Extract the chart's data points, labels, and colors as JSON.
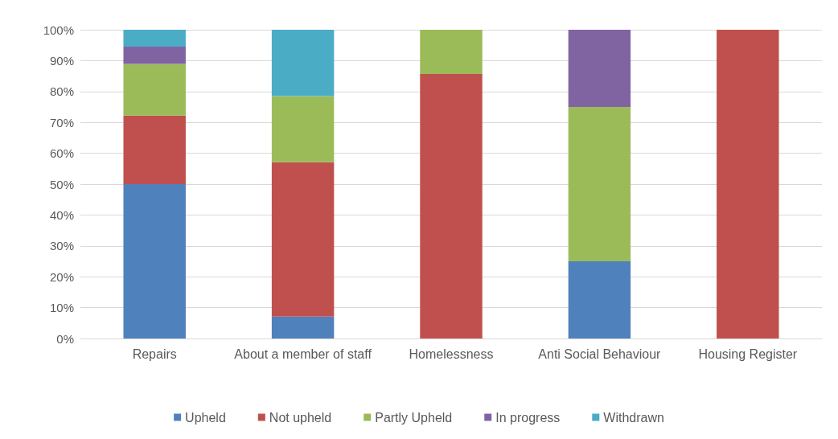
{
  "chart_data": {
    "type": "bar",
    "stacked": true,
    "categories": [
      "Repairs",
      "About a member of staff",
      "Homelessness",
      "Anti Social Behaviour",
      "Housing Register"
    ],
    "series": [
      {
        "name": "Upheld",
        "color": "#4f81bd",
        "values": [
          50,
          7.1,
          0,
          25,
          0
        ]
      },
      {
        "name": "Not upheld",
        "color": "#c0504d",
        "values": [
          22.2,
          50,
          85.7,
          0,
          100
        ]
      },
      {
        "name": "Partly Upheld",
        "color": "#9bbb59",
        "values": [
          16.7,
          21.4,
          14.3,
          50,
          0
        ]
      },
      {
        "name": "In progress",
        "color": "#8064a2",
        "values": [
          5.6,
          0,
          0,
          25,
          0
        ]
      },
      {
        "name": "Withdrawn",
        "color": "#4bacc6",
        "values": [
          5.5,
          21.5,
          0,
          0,
          0
        ]
      }
    ],
    "ylim": [
      0,
      100
    ],
    "yticks": [
      {
        "value": 0,
        "label": "0%"
      },
      {
        "value": 10,
        "label": "10%"
      },
      {
        "value": 20,
        "label": "20%"
      },
      {
        "value": 30,
        "label": "30%"
      },
      {
        "value": 40,
        "label": "40%"
      },
      {
        "value": 50,
        "label": "50%"
      },
      {
        "value": 60,
        "label": "60%"
      },
      {
        "value": 70,
        "label": "70%"
      },
      {
        "value": 80,
        "label": "80%"
      },
      {
        "value": 90,
        "label": "90%"
      },
      {
        "value": 100,
        "label": "100%"
      }
    ],
    "grid": "y",
    "legend": "bottom"
  }
}
